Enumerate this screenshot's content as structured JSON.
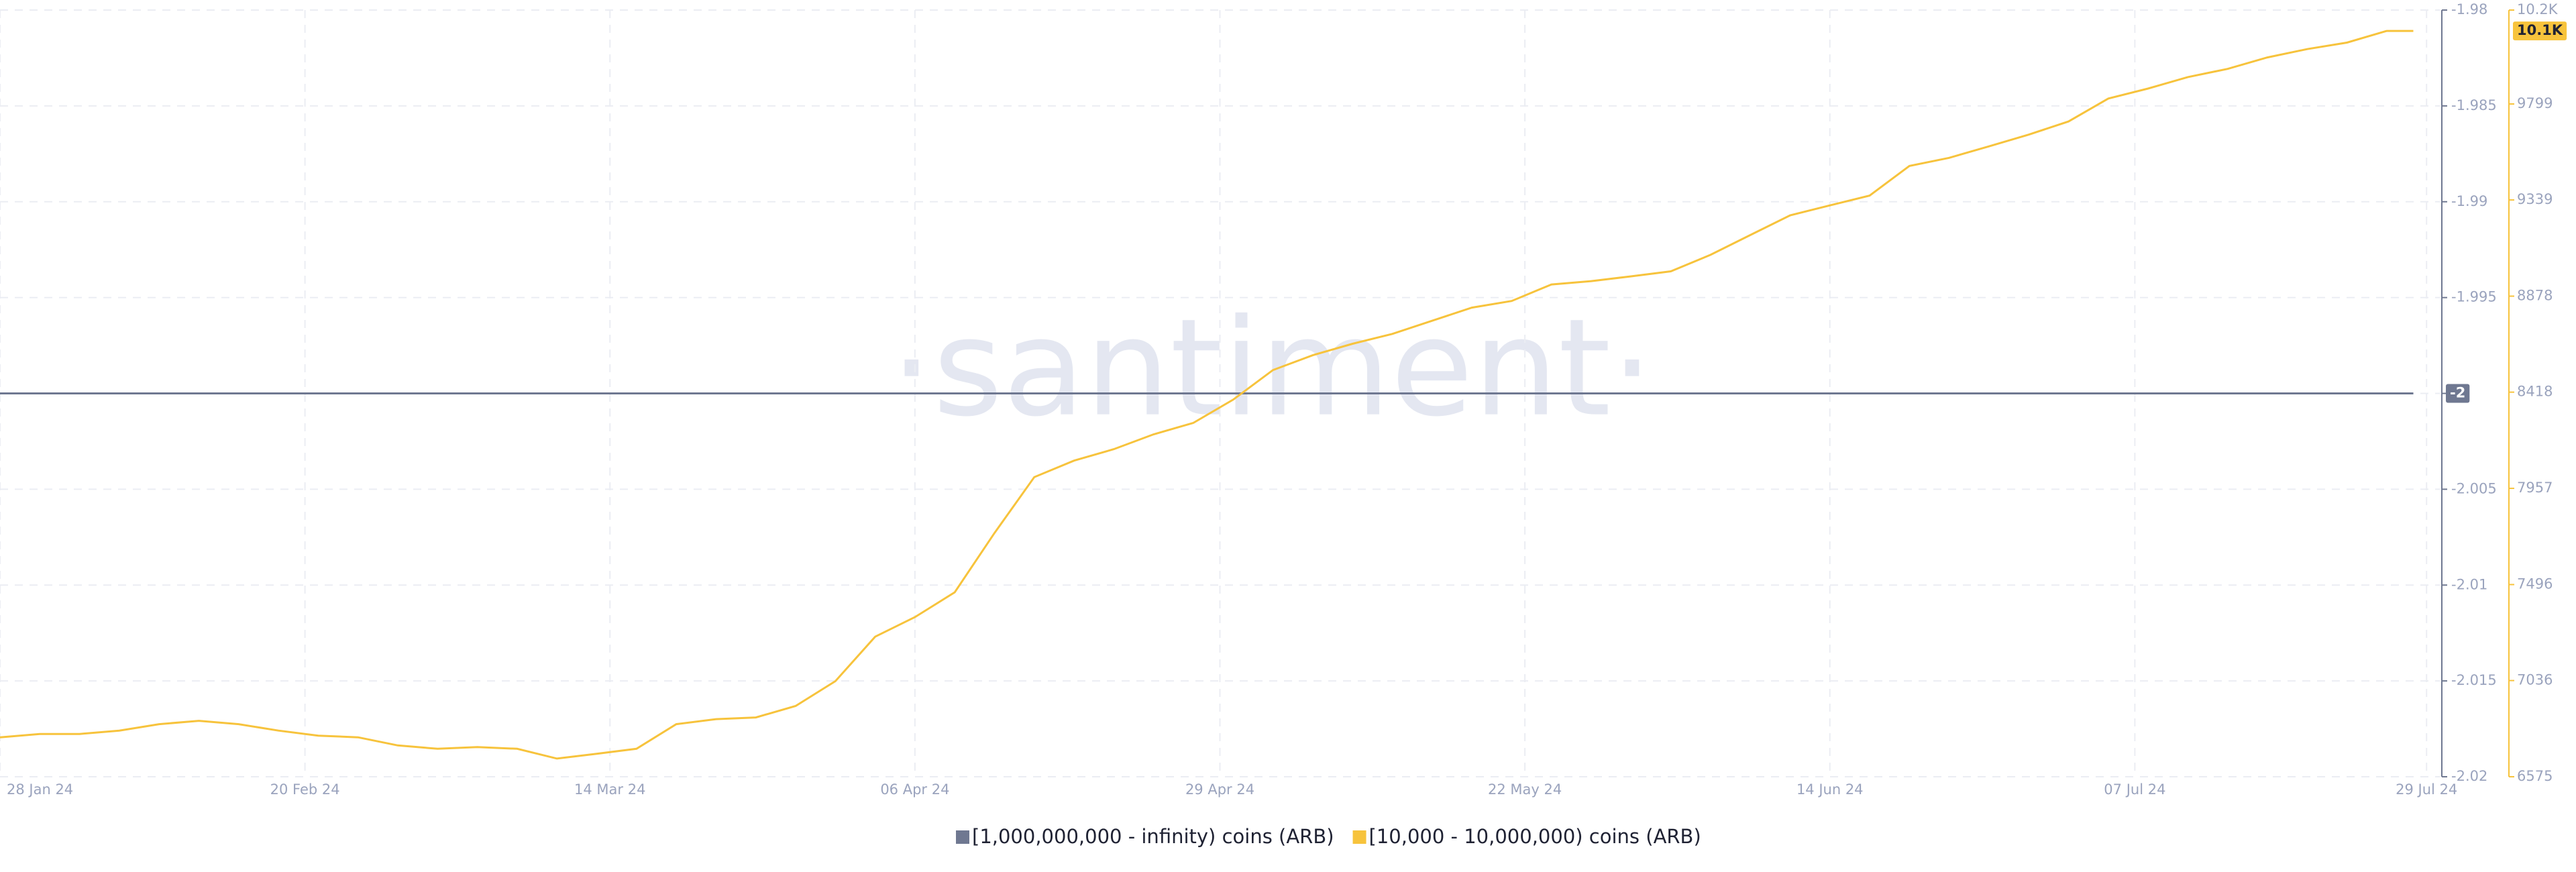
{
  "chart_data": {
    "type": "line",
    "watermark": "·santiment·",
    "x": [
      "2024-01-28",
      "2024-01-31",
      "2024-02-03",
      "2024-02-06",
      "2024-02-09",
      "2024-02-12",
      "2024-02-15",
      "2024-02-18",
      "2024-02-21",
      "2024-02-24",
      "2024-02-27",
      "2024-03-01",
      "2024-03-04",
      "2024-03-07",
      "2024-03-10",
      "2024-03-13",
      "2024-03-16",
      "2024-03-19",
      "2024-03-22",
      "2024-03-25",
      "2024-03-28",
      "2024-03-31",
      "2024-04-03",
      "2024-04-06",
      "2024-04-09",
      "2024-04-12",
      "2024-04-15",
      "2024-04-18",
      "2024-04-21",
      "2024-04-24",
      "2024-04-27",
      "2024-04-30",
      "2024-05-03",
      "2024-05-06",
      "2024-05-09",
      "2024-05-12",
      "2024-05-15",
      "2024-05-18",
      "2024-05-21",
      "2024-05-24",
      "2024-05-27",
      "2024-05-30",
      "2024-06-02",
      "2024-06-05",
      "2024-06-08",
      "2024-06-11",
      "2024-06-14",
      "2024-06-17",
      "2024-06-20",
      "2024-06-23",
      "2024-06-26",
      "2024-06-29",
      "2024-07-02",
      "2024-07-05",
      "2024-07-08",
      "2024-07-11",
      "2024-07-14",
      "2024-07-17",
      "2024-07-20",
      "2024-07-23",
      "2024-07-26",
      "2024-07-28"
    ],
    "xlim": [
      "2024-01-28",
      "2024-07-30"
    ],
    "xticks": [
      {
        "value": "2024-01-28",
        "label": "28 Jan 24"
      },
      {
        "value": "2024-02-20",
        "label": "20 Feb 24"
      },
      {
        "value": "2024-03-14",
        "label": "14 Mar 24"
      },
      {
        "value": "2024-04-06",
        "label": "06 Apr 24"
      },
      {
        "value": "2024-04-29",
        "label": "29 Apr 24"
      },
      {
        "value": "2024-05-22",
        "label": "22 May 24"
      },
      {
        "value": "2024-06-14",
        "label": "14 Jun 24"
      },
      {
        "value": "2024-07-07",
        "label": "07 Jul 24"
      },
      {
        "value": "2024-07-29",
        "label": "29 Jul 24"
      }
    ],
    "ylim": [
      -2.02,
      -1.98
    ],
    "yticks": [
      -2.02,
      -2.015,
      -2.01,
      -2.005,
      -2,
      -1.995,
      -1.99,
      -1.985,
      -1.98
    ],
    "y2lim": [
      6575,
      10249
    ],
    "y2ticks": [
      6575,
      7036,
      7496,
      7957,
      8418,
      8878,
      9339,
      9799,
      {
        "value": 10249,
        "label": "10.2K"
      }
    ],
    "grid": true,
    "legend": "bottom",
    "series": [
      {
        "name": "[1,000,000,000 - infinity) coins (ARB)",
        "color": "#6f7891",
        "last_value_label": "-2",
        "values": [
          -2,
          -2,
          -2,
          -2,
          -2,
          -2,
          -2,
          -2,
          -2,
          -2,
          -2,
          -2,
          -2,
          -2,
          -2,
          -2,
          -2,
          -2,
          -2,
          -2,
          -2,
          -2,
          -2,
          -2,
          -2,
          -2,
          -2,
          -2,
          -2,
          -2,
          -2,
          -2,
          -2,
          -2,
          -2,
          -2,
          -2,
          -2,
          -2,
          -2,
          -2,
          -2,
          -2,
          -2,
          -2,
          -2,
          -2,
          -2,
          -2,
          -2,
          -2,
          -2,
          -2,
          -2,
          -2,
          -2,
          -2,
          -2,
          -2,
          -2,
          -2,
          -2
        ]
      },
      {
        "name": "[10,000 - 10,000,000) coins (ARB)",
        "color": "#f7c33c",
        "axis": "y2",
        "last_value_label": "10.1K",
        "values": [
          6764,
          6780,
          6780,
          6796,
          6827,
          6843,
          6827,
          6796,
          6772,
          6764,
          6725,
          6709,
          6717,
          6709,
          6662,
          6685,
          6709,
          6827,
          6851,
          6859,
          6914,
          7033,
          7246,
          7340,
          7459,
          7743,
          8011,
          8090,
          8145,
          8216,
          8271,
          8382,
          8524,
          8595,
          8650,
          8697,
          8760,
          8823,
          8855,
          8934,
          8950,
          8973,
          8997,
          9076,
          9171,
          9265,
          9313,
          9360,
          9502,
          9541,
          9596,
          9652,
          9715,
          9825,
          9873,
          9928,
          9967,
          10022,
          10062,
          10093,
          10149,
          10149
        ]
      }
    ]
  }
}
